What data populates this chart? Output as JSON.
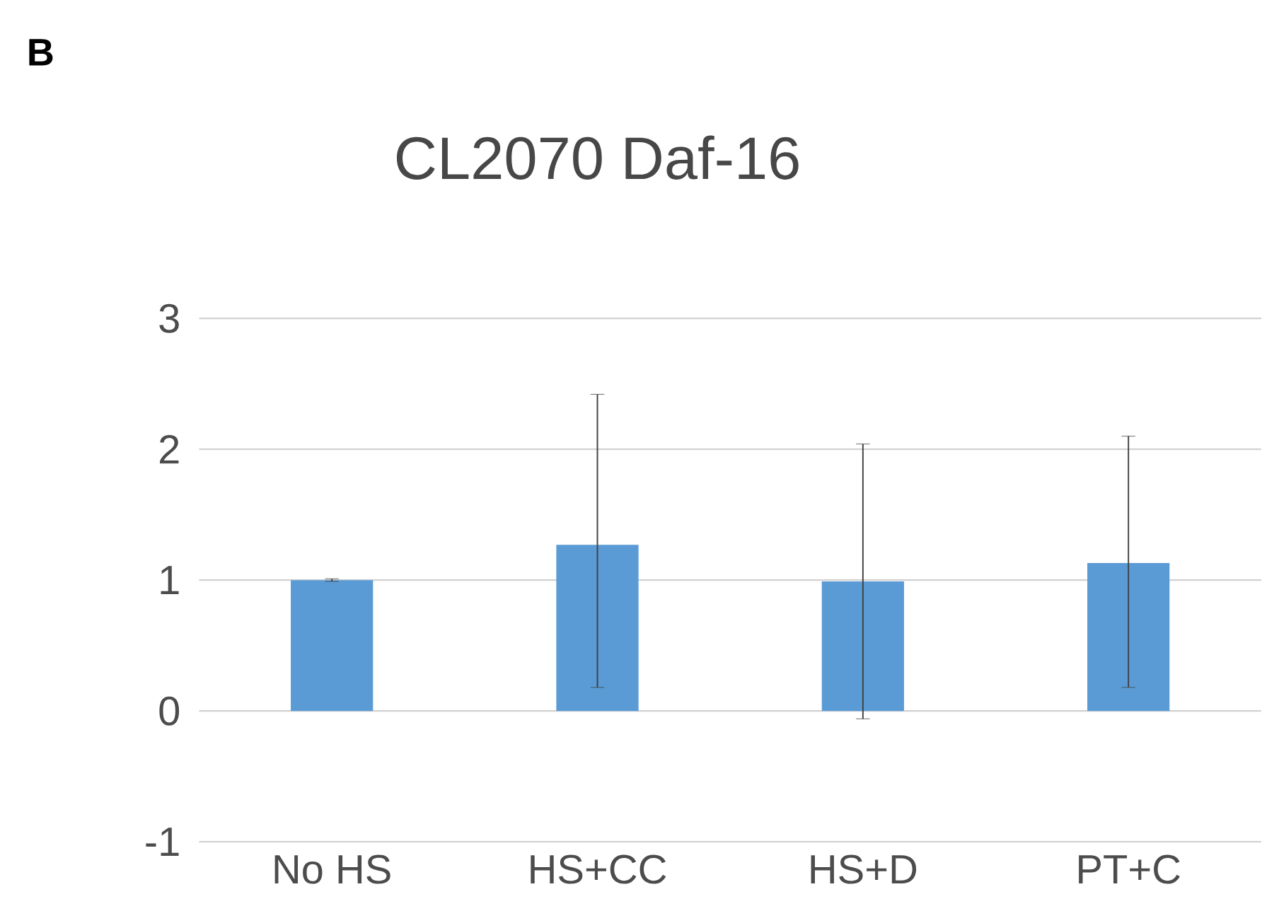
{
  "chart_data": {
    "type": "bar",
    "title": "CL2070 Daf-16",
    "annotations": [
      "B"
    ],
    "categories": [
      "No HS",
      "HS+CC",
      "HS+D",
      "PT+C"
    ],
    "values": [
      1.0,
      1.27,
      0.99,
      1.13
    ],
    "errors": [
      [
        0.99,
        1.01
      ],
      [
        0.18,
        2.42
      ],
      [
        -0.06,
        2.04
      ],
      [
        0.18,
        2.1
      ]
    ],
    "color": "#5b9bd5",
    "ylim": [
      -1,
      3
    ],
    "yticks": [
      -1,
      0,
      1,
      2,
      3
    ],
    "grid": "y"
  }
}
